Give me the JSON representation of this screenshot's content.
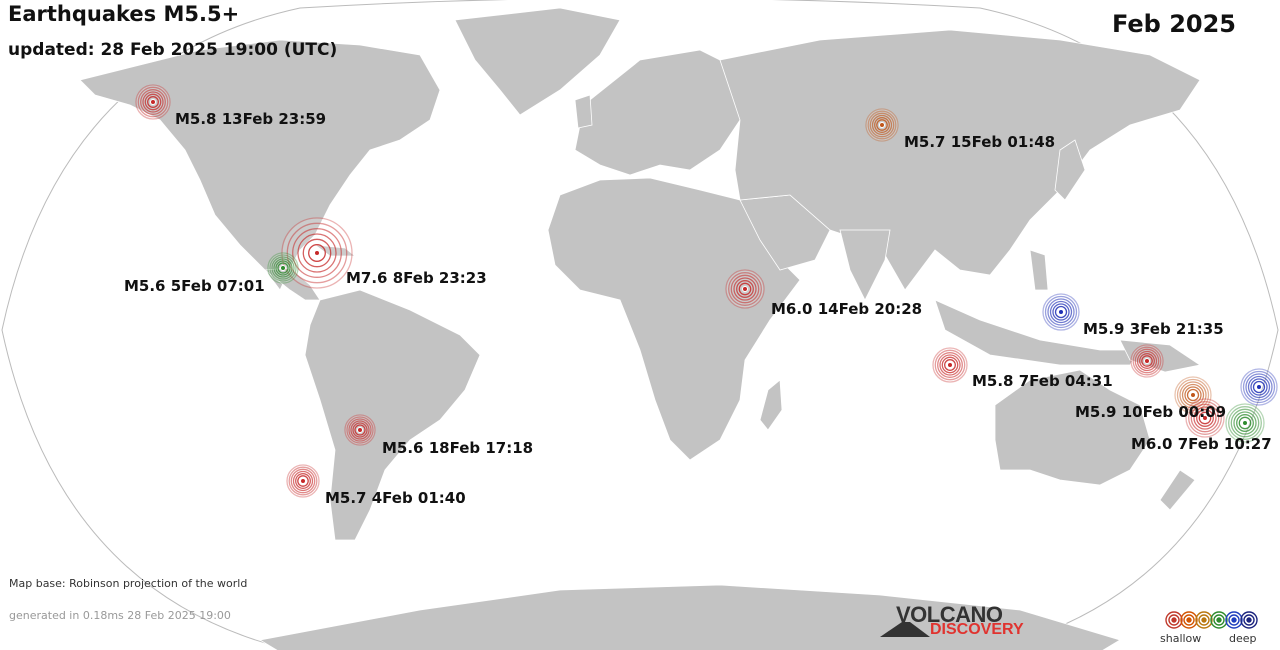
{
  "header": {
    "title": "Earthquakes M5.5+",
    "updated": "updated: 28 Feb 2025 19:00 (UTC)",
    "month": "Feb 2025"
  },
  "footer": {
    "map_base": "Map base: Robinson projection of the world",
    "generated": "generated in 0.18ms 28 Feb 2025 19:00"
  },
  "logo": {
    "line1": "VOLCANO",
    "line2": "DISCOVERY"
  },
  "legend": {
    "shallow": "shallow",
    "deep": "deep",
    "colors": [
      "#c0392b",
      "#d35400",
      "#b9770e",
      "#2e8b2e",
      "#1f3fbf",
      "#1a237e"
    ]
  },
  "colors": {
    "ocean": "#ffffff",
    "land": "#c3c3c3",
    "borders": "#ffffff",
    "shallow": "#c62828",
    "intermediate": "#c0561a",
    "mid_deep": "#2e8b2e",
    "deep": "#1f2fb5"
  },
  "earthquakes": [
    {
      "label": "M5.8 13Feb 23:59",
      "mag": 5.8,
      "depth_class": "shallow"
    },
    {
      "label": "M5.7 15Feb 01:48",
      "mag": 5.7,
      "depth_class": "intermediate"
    },
    {
      "label": "M7.6  8Feb 23:23",
      "mag": 7.6,
      "depth_class": "shallow"
    },
    {
      "label": "M5.6  5Feb 07:01",
      "mag": 5.6,
      "depth_class": "mid_deep"
    },
    {
      "label": "M6.0 14Feb 20:28",
      "mag": 6.0,
      "depth_class": "shallow"
    },
    {
      "label": "M5.9  3Feb 21:35",
      "mag": 5.9,
      "depth_class": "deep"
    },
    {
      "label": "M5.8  7Feb 04:31",
      "mag": 5.8,
      "depth_class": "shallow"
    },
    {
      "label": "M5.9 10Feb 00:09",
      "mag": 5.9,
      "depth_class": "intermediate"
    },
    {
      "label": "M6.0  7Feb 10:27",
      "mag": 6.0,
      "depth_class": "shallow"
    },
    {
      "label": "",
      "mag": 6.0,
      "depth_class": "mid_deep"
    },
    {
      "label": "",
      "mag": 5.9,
      "depth_class": "deep"
    },
    {
      "label": "",
      "mag": 5.7,
      "depth_class": "shallow"
    },
    {
      "label": "M5.6 18Feb 17:18",
      "mag": 5.6,
      "depth_class": "shallow"
    },
    {
      "label": "M5.7  4Feb 01:40",
      "mag": 5.7,
      "depth_class": "shallow"
    }
  ]
}
